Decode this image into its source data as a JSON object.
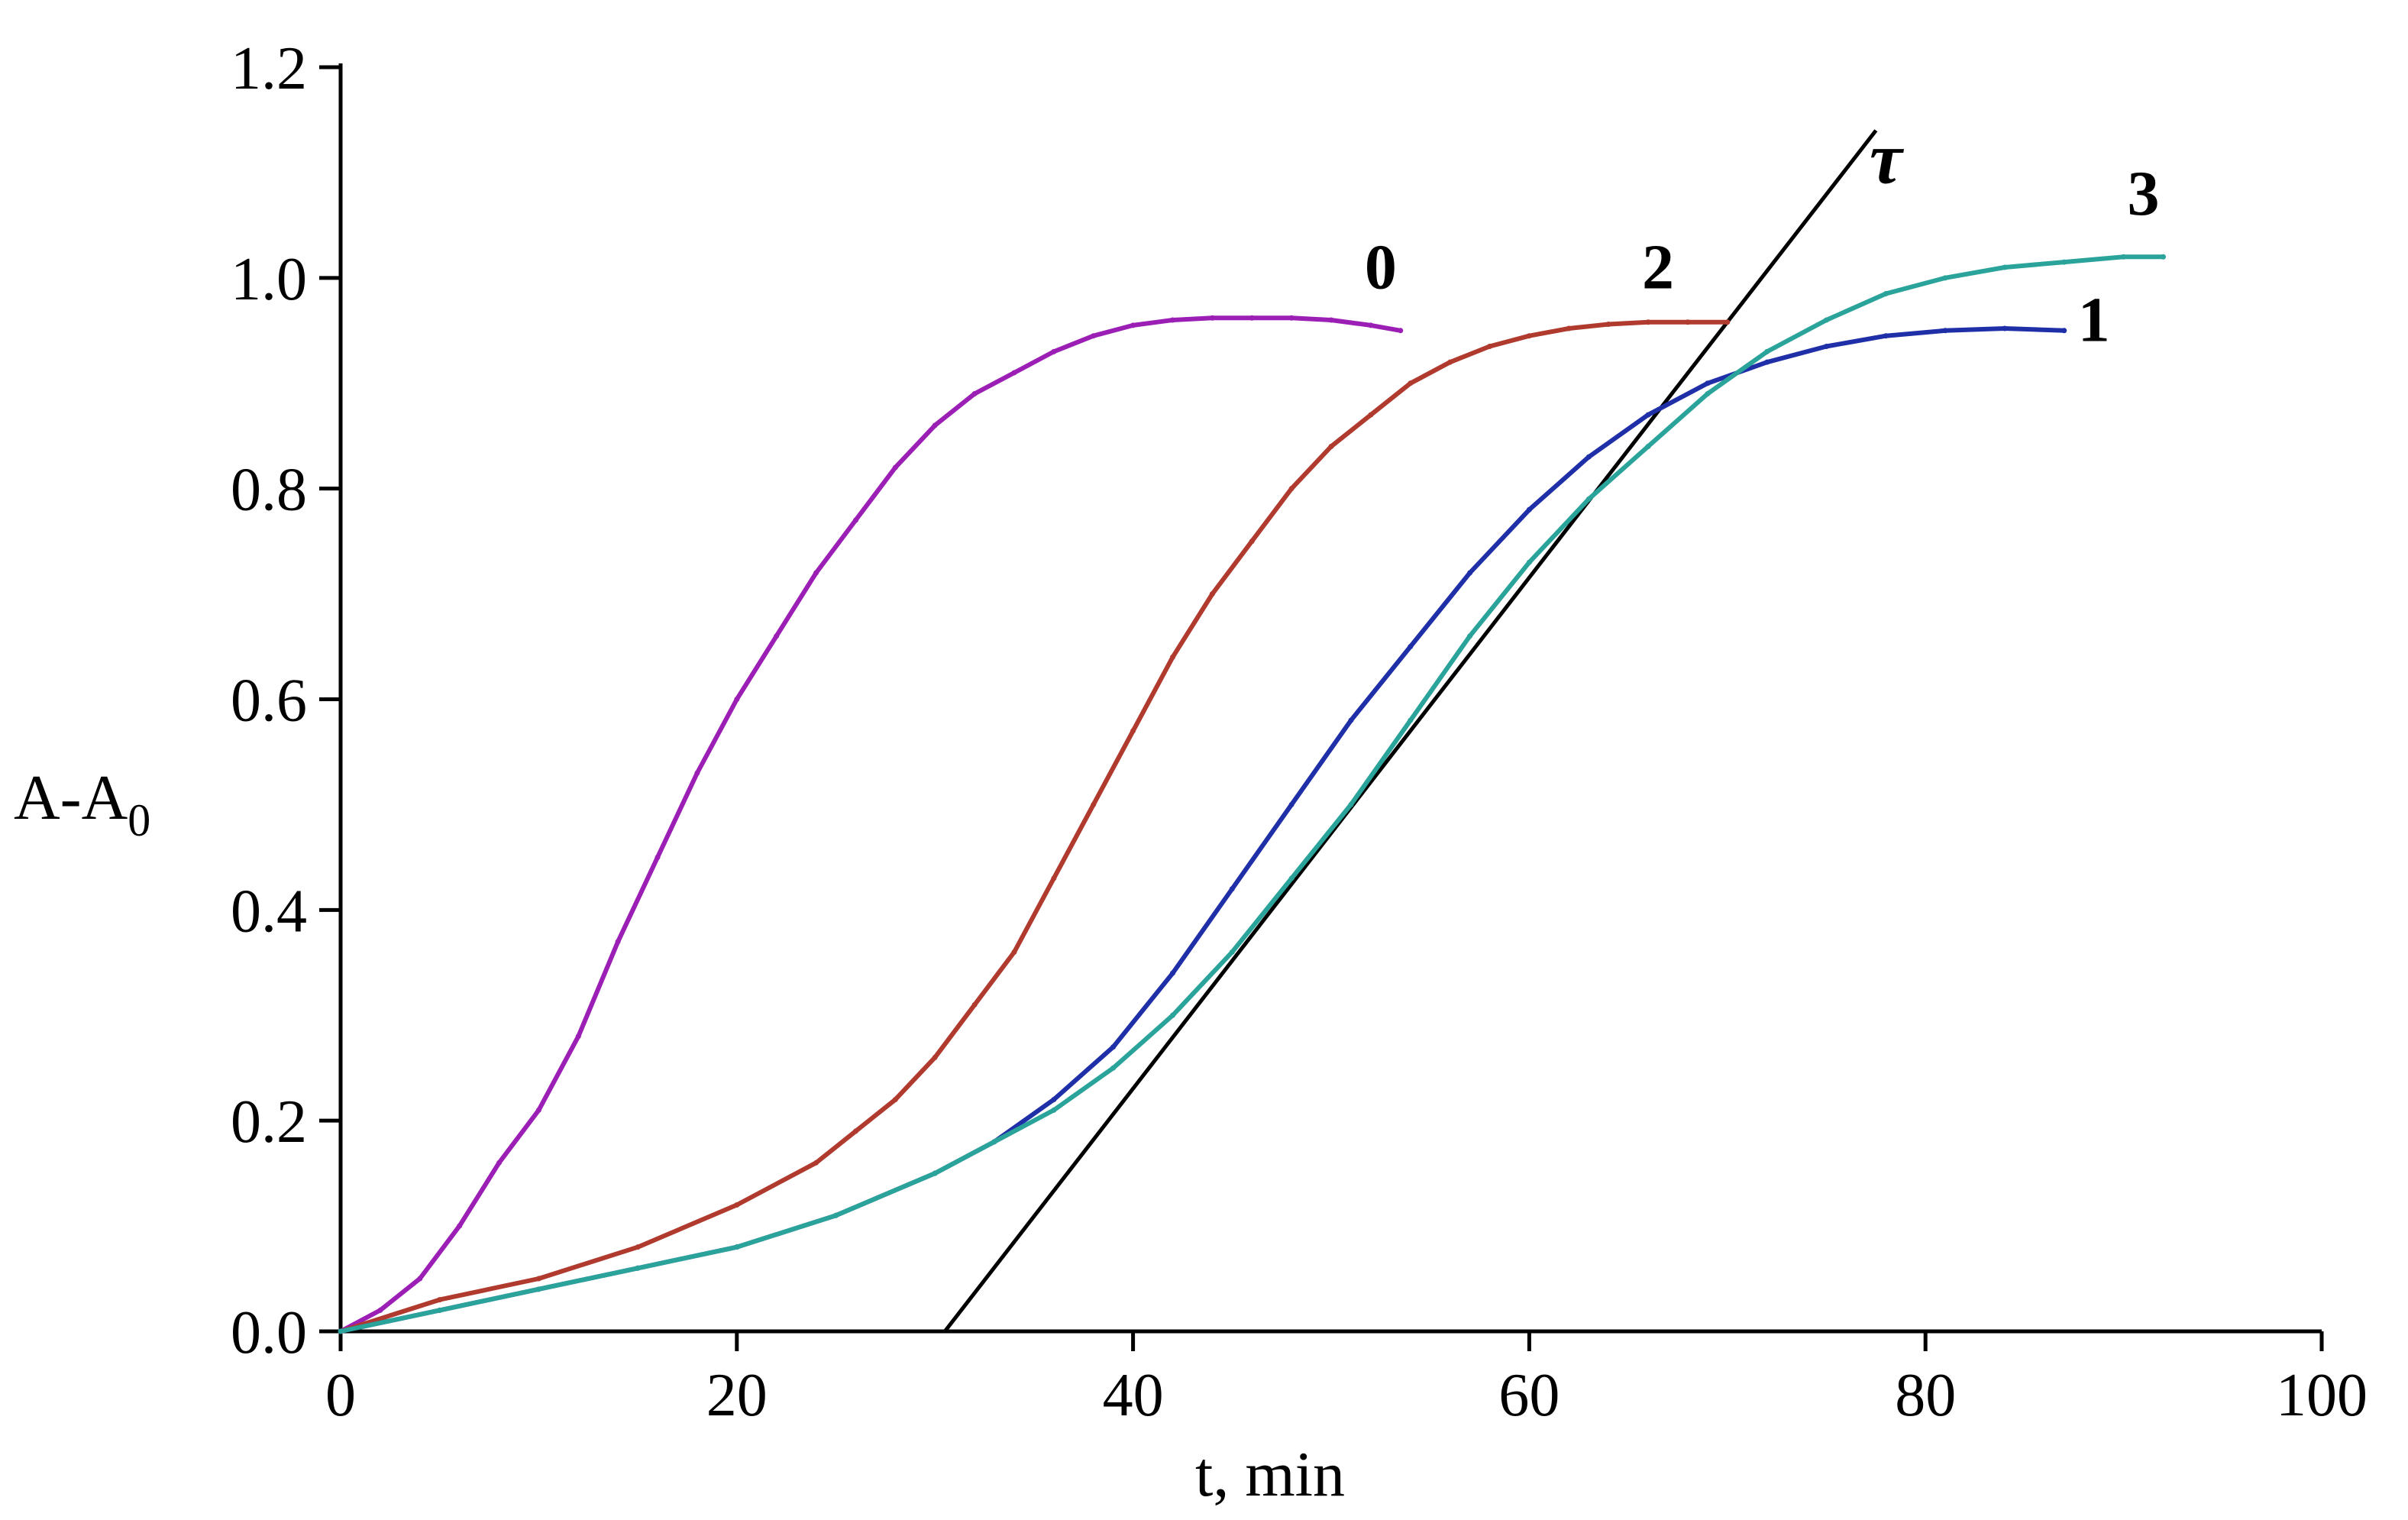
{
  "chart_data": {
    "type": "line",
    "title": "",
    "xlabel": "t, min",
    "ylabel": {
      "main": "A-A",
      "sub": "0"
    },
    "xlim": [
      0,
      100
    ],
    "ylim": [
      0,
      1.2
    ],
    "x_ticks": [
      0,
      20,
      40,
      60,
      80,
      100
    ],
    "x_tick_labels": [
      "0",
      "20",
      "40",
      "60",
      "80",
      "100"
    ],
    "y_ticks": [
      0,
      0.2,
      0.4,
      0.6,
      0.8,
      1.0,
      1.2
    ],
    "y_tick_labels": [
      "0.0",
      "0.2",
      "0.4",
      "0.6",
      "0.8",
      "1.0",
      "1.2"
    ],
    "grid": false,
    "legend": "none (curves labeled directly)",
    "series": [
      {
        "name": "0",
        "color": "#9b1fb5",
        "x": [
          0,
          2,
          4,
          6,
          8,
          10,
          12,
          14,
          16,
          18,
          20,
          22,
          24,
          26,
          28,
          30,
          32,
          34,
          36,
          38,
          40,
          42,
          44,
          46,
          48,
          50,
          52,
          53.5
        ],
        "y": [
          0.0,
          0.02,
          0.05,
          0.1,
          0.16,
          0.21,
          0.28,
          0.37,
          0.45,
          0.53,
          0.6,
          0.66,
          0.72,
          0.77,
          0.82,
          0.86,
          0.89,
          0.91,
          0.93,
          0.945,
          0.955,
          0.96,
          0.962,
          0.962,
          0.962,
          0.96,
          0.955,
          0.95
        ]
      },
      {
        "name": "2",
        "color": "#b03a2e",
        "x": [
          0,
          5,
          10,
          15,
          20,
          24,
          26,
          28,
          30,
          32,
          34,
          36,
          38,
          40,
          42,
          44,
          46,
          48,
          50,
          52,
          54,
          56,
          58,
          60,
          62,
          64,
          66,
          68,
          70
        ],
        "y": [
          0.0,
          0.03,
          0.05,
          0.08,
          0.12,
          0.16,
          0.19,
          0.22,
          0.26,
          0.31,
          0.36,
          0.43,
          0.5,
          0.57,
          0.64,
          0.7,
          0.75,
          0.8,
          0.84,
          0.87,
          0.9,
          0.92,
          0.935,
          0.945,
          0.952,
          0.956,
          0.958,
          0.958,
          0.958
        ]
      },
      {
        "name": "1",
        "color": "#1f2fa8",
        "x": [
          0,
          5,
          10,
          15,
          20,
          25,
          30,
          33,
          36,
          39,
          42,
          45,
          48,
          51,
          54,
          57,
          60,
          63,
          66,
          69,
          72,
          75,
          78,
          81,
          84,
          87
        ],
        "y": [
          0.0,
          0.02,
          0.04,
          0.06,
          0.08,
          0.11,
          0.15,
          0.18,
          0.22,
          0.27,
          0.34,
          0.42,
          0.5,
          0.58,
          0.65,
          0.72,
          0.78,
          0.83,
          0.87,
          0.9,
          0.92,
          0.935,
          0.945,
          0.95,
          0.952,
          0.95
        ]
      },
      {
        "name": "3",
        "color": "#2aa39a",
        "x": [
          0,
          5,
          10,
          15,
          20,
          25,
          30,
          33,
          36,
          39,
          42,
          45,
          48,
          51,
          54,
          57,
          60,
          63,
          66,
          69,
          72,
          75,
          78,
          81,
          84,
          87,
          90,
          92
        ],
        "y": [
          0.0,
          0.02,
          0.04,
          0.06,
          0.08,
          0.11,
          0.15,
          0.18,
          0.21,
          0.25,
          0.3,
          0.36,
          0.43,
          0.5,
          0.58,
          0.66,
          0.73,
          0.79,
          0.84,
          0.89,
          0.93,
          0.96,
          0.985,
          1.0,
          1.01,
          1.015,
          1.02,
          1.02
        ]
      }
    ],
    "tangent": {
      "name": "τ",
      "color": "#000000",
      "x": [
        30.5,
        77.5
      ],
      "y": [
        0.0,
        1.14
      ]
    },
    "series_labels": [
      {
        "text": "0",
        "x": 52.5,
        "y": 0.99
      },
      {
        "text": "2",
        "x": 66.5,
        "y": 0.99
      },
      {
        "text": "1",
        "x": 88.5,
        "y": 0.94
      },
      {
        "text": "3",
        "x": 91.0,
        "y": 1.06
      },
      {
        "text": "τ",
        "x": 78.0,
        "y": 1.09
      }
    ]
  }
}
